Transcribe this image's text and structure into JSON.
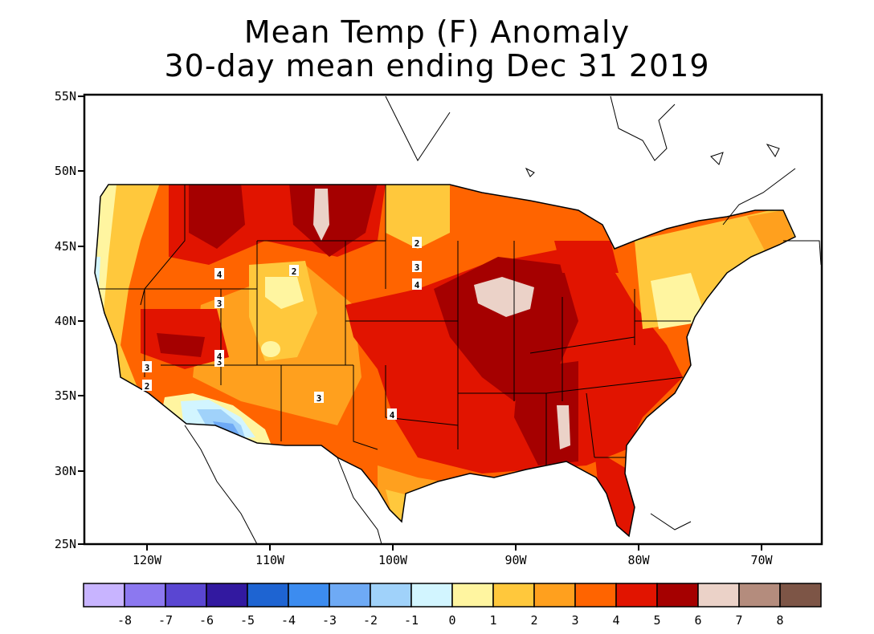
{
  "title": {
    "line1": "Mean Temp (F) Anomaly",
    "line2": "30-day mean ending Dec 31 2019"
  },
  "axes": {
    "lat_labels": [
      "55N",
      "50N",
      "45N",
      "40N",
      "35N",
      "30N",
      "25N"
    ],
    "lon_labels": [
      "120W",
      "110W",
      "100W",
      "90W",
      "80W",
      "70W"
    ]
  },
  "colorbar": {
    "colors": [
      "#c8b4ff",
      "#8c78f0",
      "#5a46d2",
      "#3219a0",
      "#1e64d2",
      "#3c8cf0",
      "#6eaaf5",
      "#a0d2fa",
      "#d2f5ff",
      "#fff5a0",
      "#ffc83c",
      "#ffa01e",
      "#ff6400",
      "#e11400",
      "#a50000",
      "#ebd2c8",
      "#b48c7d",
      "#7d5546"
    ],
    "labels": [
      "-8",
      "-7",
      "-6",
      "-5",
      "-4",
      "-3",
      "-2",
      "-1",
      "0",
      "1",
      "2",
      "3",
      "4",
      "5",
      "6",
      "7",
      "8"
    ]
  },
  "contour_labels": [
    "4",
    "2",
    "3",
    "2",
    "3",
    "4",
    "3",
    "4",
    "3",
    "2",
    "3",
    "4"
  ]
}
